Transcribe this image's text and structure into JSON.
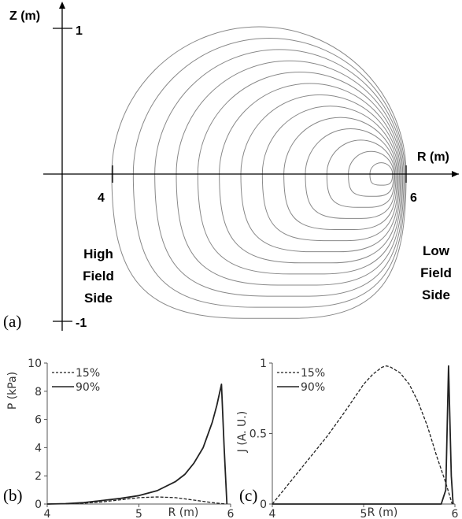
{
  "panel_a": {
    "panel_label": "(a)",
    "z_axis_label": "Z (m)",
    "r_axis_label": "R (m)",
    "z_tick_top": "1",
    "z_tick_bottom": "-1",
    "r_tick_left": "4",
    "r_tick_right": "6",
    "hfs_line1": "High",
    "hfs_line2": "Field",
    "hfs_line3": "Side",
    "lfs_line1": "Low",
    "lfs_line2": "Field",
    "lfs_line3": "Side"
  },
  "chart_data": [
    {
      "id": "b",
      "panel_label": "(b)",
      "type": "line",
      "xlabel": "R (m)",
      "ylabel": "P (kPa)",
      "xlim": [
        4,
        6
      ],
      "ylim": [
        0,
        10
      ],
      "x_ticks": [
        "4",
        "5",
        "6"
      ],
      "y_ticks": [
        "0",
        "2",
        "4",
        "6",
        "8",
        "10"
      ],
      "series": [
        {
          "name": "15%",
          "style": "dashed",
          "x": [
            4.0,
            4.2,
            4.4,
            4.6,
            4.8,
            5.0,
            5.2,
            5.4,
            5.6,
            5.8,
            5.95
          ],
          "y": [
            0.0,
            0.02,
            0.06,
            0.15,
            0.3,
            0.45,
            0.5,
            0.45,
            0.28,
            0.1,
            0.0
          ]
        },
        {
          "name": "90%",
          "style": "solid",
          "x": [
            4.0,
            4.2,
            4.4,
            4.6,
            4.8,
            5.0,
            5.2,
            5.4,
            5.5,
            5.6,
            5.7,
            5.8,
            5.85,
            5.9,
            5.93,
            5.96
          ],
          "y": [
            0.0,
            0.03,
            0.1,
            0.25,
            0.4,
            0.6,
            0.95,
            1.6,
            2.1,
            2.9,
            4.0,
            5.8,
            7.0,
            8.5,
            4.0,
            0.0
          ]
        }
      ]
    },
    {
      "id": "c",
      "panel_label": "(c)",
      "type": "line",
      "xlabel": "R (m)",
      "ylabel": "J (A. U.)",
      "xlim": [
        4,
        6
      ],
      "ylim": [
        0,
        1
      ],
      "x_ticks": [
        "4",
        "5",
        "6"
      ],
      "y_ticks": [
        "0",
        "0.5",
        "1"
      ],
      "series": [
        {
          "name": "15%",
          "style": "dashed",
          "x": [
            4.0,
            4.2,
            4.4,
            4.6,
            4.8,
            5.0,
            5.1,
            5.2,
            5.25,
            5.3,
            5.4,
            5.5,
            5.6,
            5.7,
            5.8,
            5.9,
            5.97
          ],
          "y": [
            0.0,
            0.16,
            0.32,
            0.48,
            0.66,
            0.85,
            0.92,
            0.97,
            0.98,
            0.97,
            0.93,
            0.85,
            0.72,
            0.55,
            0.34,
            0.15,
            0.0
          ]
        },
        {
          "name": "90%",
          "style": "solid",
          "x": [
            4.0,
            5.85,
            5.9,
            5.93,
            5.96,
            5.98
          ],
          "y": [
            0.0,
            0.0,
            0.1,
            0.98,
            0.2,
            0.0
          ]
        }
      ]
    }
  ]
}
